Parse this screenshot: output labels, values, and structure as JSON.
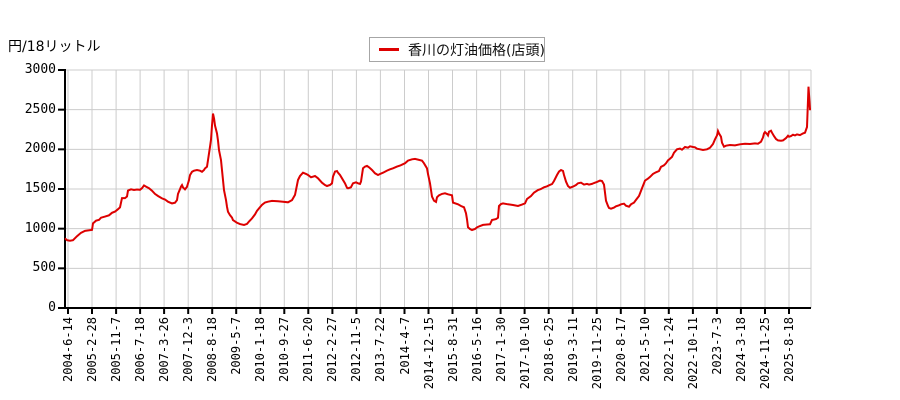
{
  "header": {
    "unit_label": "円/18リットル"
  },
  "legend": {
    "label": "香川の灯油価格(店頭)"
  },
  "chart_data": {
    "type": "line",
    "title": "香川の灯油価格(店頭)",
    "ylabel": "円/18リットル",
    "xlabel": "",
    "grid": true,
    "legend_position": "top-center",
    "ylim": [
      0,
      3000
    ],
    "y_ticks": [
      0,
      500,
      1000,
      1500,
      2000,
      2500,
      3000
    ],
    "x_tick_labels": [
      "2004-6-14",
      "2005-2-28",
      "2005-11-7",
      "2006-7-18",
      "2007-3-26",
      "2007-12-3",
      "2008-8-18",
      "2009-5-7",
      "2010-1-18",
      "2010-9-27",
      "2011-6-20",
      "2012-2-27",
      "2012-11-5",
      "2013-7-22",
      "2014-4-7",
      "2014-12-15",
      "2015-8-31",
      "2016-5-16",
      "2017-1-30",
      "2017-10-10",
      "2018-6-25",
      "2019-3-11",
      "2019-11-25",
      "2020-8-17",
      "2021-5-10",
      "2022-1-24",
      "2022-10-11",
      "2023-7-3",
      "2024-3-18",
      "2024-11-25",
      "2025-8-18"
    ],
    "series_name": "香川の灯油価格(店頭)",
    "series_color": "#dd0000",
    "grid_color": "#cccccc",
    "axis_color": "#000000",
    "points": [
      [
        0.0,
        878
      ],
      [
        0.0027,
        855
      ],
      [
        0.0067,
        848
      ],
      [
        0.0107,
        855
      ],
      [
        0.0161,
        905
      ],
      [
        0.0214,
        948
      ],
      [
        0.0268,
        972
      ],
      [
        0.0362,
        985
      ],
      [
        0.0375,
        1067
      ],
      [
        0.0416,
        1100
      ],
      [
        0.0456,
        1110
      ],
      [
        0.0483,
        1138
      ],
      [
        0.0536,
        1152
      ],
      [
        0.059,
        1168
      ],
      [
        0.063,
        1200
      ],
      [
        0.067,
        1215
      ],
      [
        0.071,
        1245
      ],
      [
        0.0737,
        1269
      ],
      [
        0.0764,
        1385
      ],
      [
        0.0804,
        1385
      ],
      [
        0.0831,
        1405
      ],
      [
        0.0845,
        1480
      ],
      [
        0.0885,
        1496
      ],
      [
        0.0925,
        1488
      ],
      [
        0.0965,
        1494
      ],
      [
        0.1005,
        1490
      ],
      [
        0.1032,
        1510
      ],
      [
        0.1059,
        1545
      ],
      [
        0.1086,
        1530
      ],
      [
        0.1126,
        1510
      ],
      [
        0.1166,
        1478
      ],
      [
        0.1206,
        1438
      ],
      [
        0.1247,
        1412
      ],
      [
        0.13,
        1382
      ],
      [
        0.134,
        1368
      ],
      [
        0.1381,
        1340
      ],
      [
        0.1434,
        1318
      ],
      [
        0.1475,
        1327
      ],
      [
        0.1501,
        1360
      ],
      [
        0.1515,
        1438
      ],
      [
        0.1542,
        1497
      ],
      [
        0.1555,
        1530
      ],
      [
        0.1568,
        1549
      ],
      [
        0.1582,
        1520
      ],
      [
        0.1595,
        1507
      ],
      [
        0.1609,
        1495
      ],
      [
        0.1635,
        1528
      ],
      [
        0.1649,
        1570
      ],
      [
        0.1662,
        1612
      ],
      [
        0.1676,
        1675
      ],
      [
        0.1702,
        1717
      ],
      [
        0.1729,
        1731
      ],
      [
        0.177,
        1739
      ],
      [
        0.181,
        1731
      ],
      [
        0.1837,
        1717
      ],
      [
        0.1863,
        1739
      ],
      [
        0.1877,
        1760
      ],
      [
        0.1904,
        1781
      ],
      [
        0.1917,
        1864
      ],
      [
        0.1944,
        2032
      ],
      [
        0.1957,
        2120
      ],
      [
        0.1971,
        2300
      ],
      [
        0.1984,
        2450
      ],
      [
        0.1998,
        2385
      ],
      [
        0.2011,
        2300
      ],
      [
        0.2038,
        2200
      ],
      [
        0.2051,
        2110
      ],
      [
        0.2064,
        1990
      ],
      [
        0.2091,
        1864
      ],
      [
        0.2104,
        1738
      ],
      [
        0.2118,
        1612
      ],
      [
        0.2131,
        1486
      ],
      [
        0.2158,
        1360
      ],
      [
        0.2171,
        1276
      ],
      [
        0.2185,
        1213
      ],
      [
        0.2212,
        1170
      ],
      [
        0.2239,
        1140
      ],
      [
        0.2252,
        1108
      ],
      [
        0.2306,
        1074
      ],
      [
        0.2346,
        1057
      ],
      [
        0.2399,
        1046
      ],
      [
        0.244,
        1060
      ],
      [
        0.2466,
        1090
      ],
      [
        0.2507,
        1130
      ],
      [
        0.2547,
        1180
      ],
      [
        0.2574,
        1225
      ],
      [
        0.2601,
        1255
      ],
      [
        0.2641,
        1300
      ],
      [
        0.2681,
        1330
      ],
      [
        0.2721,
        1340
      ],
      [
        0.2775,
        1350
      ],
      [
        0.2855,
        1345
      ],
      [
        0.2922,
        1340
      ],
      [
        0.2989,
        1332
      ],
      [
        0.3043,
        1360
      ],
      [
        0.3083,
        1425
      ],
      [
        0.311,
        1550
      ],
      [
        0.3123,
        1614
      ],
      [
        0.315,
        1664
      ],
      [
        0.319,
        1705
      ],
      [
        0.3231,
        1690
      ],
      [
        0.3257,
        1677
      ],
      [
        0.3298,
        1647
      ],
      [
        0.3351,
        1664
      ],
      [
        0.3391,
        1635
      ],
      [
        0.3445,
        1580
      ],
      [
        0.3485,
        1551
      ],
      [
        0.3512,
        1538
      ],
      [
        0.3552,
        1551
      ],
      [
        0.3579,
        1572
      ],
      [
        0.3592,
        1656
      ],
      [
        0.3619,
        1719
      ],
      [
        0.3646,
        1727
      ],
      [
        0.3659,
        1706
      ],
      [
        0.3686,
        1677
      ],
      [
        0.3713,
        1635
      ],
      [
        0.3753,
        1572
      ],
      [
        0.378,
        1515
      ],
      [
        0.3793,
        1509
      ],
      [
        0.3833,
        1522
      ],
      [
        0.386,
        1572
      ],
      [
        0.3901,
        1585
      ],
      [
        0.3927,
        1572
      ],
      [
        0.3954,
        1564
      ],
      [
        0.3968,
        1593
      ],
      [
        0.3994,
        1761
      ],
      [
        0.4021,
        1782
      ],
      [
        0.4048,
        1791
      ],
      [
        0.4075,
        1774
      ],
      [
        0.4115,
        1740
      ],
      [
        0.4155,
        1698
      ],
      [
        0.4196,
        1677
      ],
      [
        0.4223,
        1689
      ],
      [
        0.4263,
        1706
      ],
      [
        0.4316,
        1732
      ],
      [
        0.4357,
        1748
      ],
      [
        0.4397,
        1761
      ],
      [
        0.445,
        1782
      ],
      [
        0.4491,
        1795
      ],
      [
        0.4531,
        1812
      ],
      [
        0.4558,
        1824
      ],
      [
        0.4598,
        1858
      ],
      [
        0.4651,
        1875
      ],
      [
        0.4692,
        1879
      ],
      [
        0.4732,
        1870
      ],
      [
        0.4786,
        1858
      ],
      [
        0.4812,
        1824
      ],
      [
        0.4853,
        1761
      ],
      [
        0.4866,
        1689
      ],
      [
        0.4893,
        1572
      ],
      [
        0.4906,
        1488
      ],
      [
        0.492,
        1404
      ],
      [
        0.4946,
        1353
      ],
      [
        0.4973,
        1337
      ],
      [
        0.4987,
        1395
      ],
      [
        0.5013,
        1421
      ],
      [
        0.5054,
        1438
      ],
      [
        0.5094,
        1446
      ],
      [
        0.5134,
        1433
      ],
      [
        0.5188,
        1421
      ],
      [
        0.5201,
        1328
      ],
      [
        0.5268,
        1307
      ],
      [
        0.5308,
        1286
      ],
      [
        0.5349,
        1269
      ],
      [
        0.5375,
        1194
      ],
      [
        0.5389,
        1118
      ],
      [
        0.5402,
        1017
      ],
      [
        0.5429,
        996
      ],
      [
        0.5456,
        983
      ],
      [
        0.5496,
        996
      ],
      [
        0.5523,
        1017
      ],
      [
        0.5563,
        1034
      ],
      [
        0.5603,
        1047
      ],
      [
        0.5657,
        1052
      ],
      [
        0.5697,
        1055
      ],
      [
        0.5724,
        1109
      ],
      [
        0.5778,
        1121
      ],
      [
        0.5804,
        1138
      ],
      [
        0.5818,
        1286
      ],
      [
        0.5845,
        1311
      ],
      [
        0.5871,
        1319
      ],
      [
        0.5938,
        1307
      ],
      [
        0.6005,
        1298
      ],
      [
        0.6072,
        1286
      ],
      [
        0.6126,
        1303
      ],
      [
        0.6166,
        1319
      ],
      [
        0.6193,
        1374
      ],
      [
        0.6247,
        1412
      ],
      [
        0.6287,
        1454
      ],
      [
        0.6341,
        1488
      ],
      [
        0.6381,
        1500
      ],
      [
        0.6421,
        1521
      ],
      [
        0.6462,
        1534
      ],
      [
        0.6488,
        1547
      ],
      [
        0.6529,
        1563
      ],
      [
        0.6555,
        1601
      ],
      [
        0.6595,
        1677
      ],
      [
        0.6622,
        1719
      ],
      [
        0.6649,
        1740
      ],
      [
        0.6676,
        1727
      ],
      [
        0.6689,
        1677
      ],
      [
        0.6716,
        1593
      ],
      [
        0.6742,
        1538
      ],
      [
        0.6769,
        1517
      ],
      [
        0.681,
        1530
      ],
      [
        0.685,
        1551
      ],
      [
        0.6877,
        1572
      ],
      [
        0.6917,
        1580
      ],
      [
        0.6957,
        1555
      ],
      [
        0.6997,
        1564
      ],
      [
        0.7024,
        1555
      ],
      [
        0.7064,
        1564
      ],
      [
        0.7091,
        1576
      ],
      [
        0.7131,
        1589
      ],
      [
        0.7171,
        1606
      ],
      [
        0.7198,
        1601
      ],
      [
        0.7225,
        1555
      ],
      [
        0.7238,
        1454
      ],
      [
        0.7252,
        1353
      ],
      [
        0.7279,
        1286
      ],
      [
        0.7292,
        1261
      ],
      [
        0.7319,
        1252
      ],
      [
        0.7359,
        1265
      ],
      [
        0.7386,
        1282
      ],
      [
        0.7426,
        1294
      ],
      [
        0.7453,
        1307
      ],
      [
        0.7493,
        1315
      ],
      [
        0.752,
        1290
      ],
      [
        0.756,
        1277
      ],
      [
        0.7587,
        1307
      ],
      [
        0.7627,
        1328
      ],
      [
        0.7654,
        1362
      ],
      [
        0.7694,
        1412
      ],
      [
        0.7735,
        1509
      ],
      [
        0.7775,
        1606
      ],
      [
        0.7815,
        1631
      ],
      [
        0.7842,
        1652
      ],
      [
        0.7882,
        1690
      ],
      [
        0.7922,
        1711
      ],
      [
        0.7963,
        1727
      ],
      [
        0.7989,
        1778
      ],
      [
        0.8029,
        1799
      ],
      [
        0.8056,
        1824
      ],
      [
        0.8083,
        1862
      ],
      [
        0.8097,
        1870
      ],
      [
        0.8137,
        1904
      ],
      [
        0.8164,
        1958
      ],
      [
        0.8204,
        2000
      ],
      [
        0.8244,
        2009
      ],
      [
        0.8271,
        1996
      ],
      [
        0.8311,
        2029
      ],
      [
        0.8351,
        2021
      ],
      [
        0.8378,
        2038
      ],
      [
        0.8418,
        2029
      ],
      [
        0.8445,
        2025
      ],
      [
        0.8472,
        2008
      ],
      [
        0.8512,
        2000
      ],
      [
        0.8552,
        1992
      ],
      [
        0.8606,
        2000
      ],
      [
        0.8646,
        2021
      ],
      [
        0.8686,
        2067
      ],
      [
        0.8713,
        2126
      ],
      [
        0.874,
        2176
      ],
      [
        0.8753,
        2230
      ],
      [
        0.8767,
        2201
      ],
      [
        0.8794,
        2159
      ],
      [
        0.8807,
        2084
      ],
      [
        0.8834,
        2033
      ],
      [
        0.8861,
        2046
      ],
      [
        0.8914,
        2054
      ],
      [
        0.8981,
        2050
      ],
      [
        0.9048,
        2063
      ],
      [
        0.9115,
        2071
      ],
      [
        0.9182,
        2067
      ],
      [
        0.9249,
        2075
      ],
      [
        0.929,
        2071
      ],
      [
        0.933,
        2096
      ],
      [
        0.9357,
        2151
      ],
      [
        0.937,
        2201
      ],
      [
        0.9383,
        2218
      ],
      [
        0.941,
        2193
      ],
      [
        0.9424,
        2176
      ],
      [
        0.9437,
        2222
      ],
      [
        0.9464,
        2235
      ],
      [
        0.9477,
        2210
      ],
      [
        0.9504,
        2167
      ],
      [
        0.9531,
        2130
      ],
      [
        0.9558,
        2113
      ],
      [
        0.9598,
        2109
      ],
      [
        0.9625,
        2113
      ],
      [
        0.9665,
        2142
      ],
      [
        0.9692,
        2172
      ],
      [
        0.9705,
        2159
      ],
      [
        0.9732,
        2167
      ],
      [
        0.9759,
        2184
      ],
      [
        0.9786,
        2176
      ],
      [
        0.9812,
        2188
      ],
      [
        0.9853,
        2180
      ],
      [
        0.9893,
        2201
      ],
      [
        0.992,
        2210
      ],
      [
        0.9946,
        2281
      ],
      [
        0.9966,
        2790
      ],
      [
        0.9987,
        2505
      ],
      [
        1.0,
        2505
      ]
    ]
  }
}
